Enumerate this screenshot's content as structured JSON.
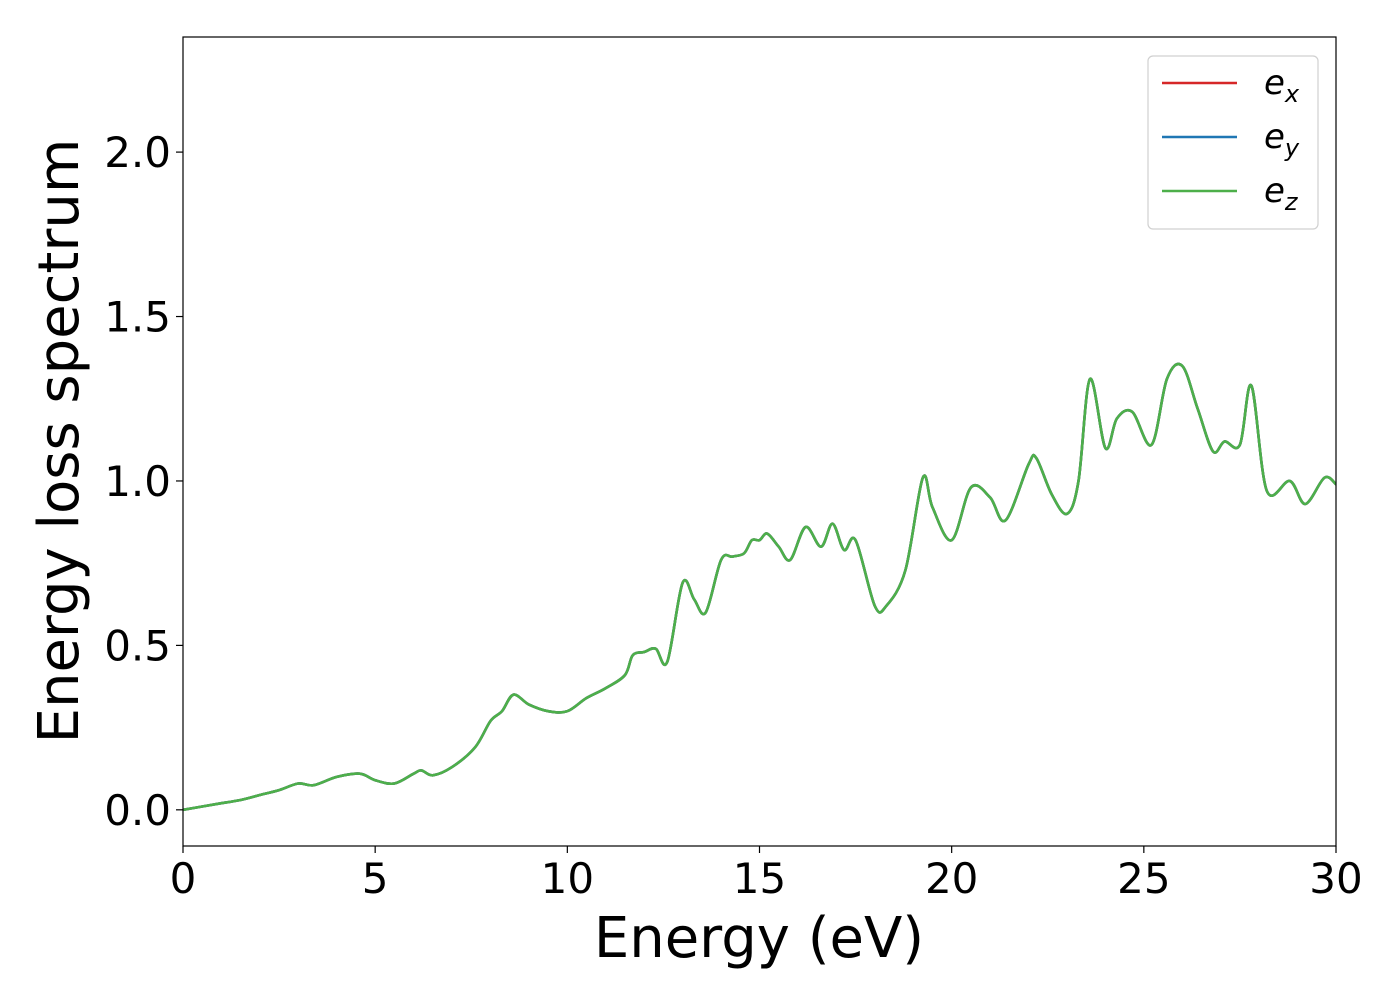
{
  "chart_data": {
    "type": "line",
    "xlabel": "Energy (eV)",
    "ylabel": "Energy loss spectrum",
    "xlim": [
      0,
      30
    ],
    "ylim": [
      -0.11,
      2.35
    ],
    "xticks": [
      0,
      5,
      10,
      15,
      20,
      25,
      30
    ],
    "xtick_labels": [
      "0",
      "5",
      "10",
      "15",
      "20",
      "25",
      "30"
    ],
    "yticks": [
      0.0,
      0.5,
      1.0,
      1.5,
      2.0
    ],
    "ytick_labels": [
      "0.0",
      "0.5",
      "1.0",
      "1.5",
      "2.0"
    ],
    "grid": false,
    "legend_position": "top-right",
    "series": [
      {
        "name": "e",
        "subscript": "x",
        "color": "#d62728",
        "ref": "e_z"
      },
      {
        "name": "e",
        "subscript": "y",
        "color": "#1f77b4",
        "ref": "e_z"
      },
      {
        "name": "e",
        "subscript": "z",
        "color": "#4daf4a",
        "ref": "e_z"
      }
    ],
    "x": [
      0.0,
      0.5,
      1.0,
      1.5,
      2.0,
      2.5,
      3.0,
      3.4,
      4.0,
      4.6,
      5.0,
      5.5,
      6.0,
      6.2,
      6.5,
      7.0,
      7.6,
      8.0,
      8.3,
      8.6,
      9.0,
      9.5,
      10.0,
      10.5,
      11.0,
      11.5,
      11.7,
      12.0,
      12.3,
      12.6,
      13.0,
      13.3,
      13.6,
      14.0,
      14.3,
      14.6,
      14.8,
      15.0,
      15.2,
      15.5,
      15.8,
      16.2,
      16.6,
      16.9,
      17.2,
      17.5,
      18.0,
      18.3,
      18.8,
      19.25,
      19.5,
      20.0,
      20.5,
      21.0,
      21.4,
      22.0,
      22.2,
      22.6,
      23.0,
      23.3,
      23.6,
      24.0,
      24.3,
      24.7,
      25.2,
      25.6,
      26.0,
      26.4,
      26.8,
      27.1,
      27.5,
      27.8,
      28.2,
      28.8,
      29.2,
      29.7,
      30.0
    ],
    "e_z": [
      0.0,
      0.01,
      0.02,
      0.03,
      0.045,
      0.06,
      0.08,
      0.075,
      0.1,
      0.11,
      0.09,
      0.08,
      0.11,
      0.12,
      0.105,
      0.13,
      0.19,
      0.27,
      0.3,
      0.35,
      0.32,
      0.3,
      0.3,
      0.34,
      0.37,
      0.41,
      0.47,
      0.48,
      0.49,
      0.45,
      0.69,
      0.64,
      0.6,
      0.76,
      0.77,
      0.78,
      0.82,
      0.82,
      0.84,
      0.8,
      0.76,
      0.86,
      0.8,
      0.87,
      0.79,
      0.82,
      0.62,
      0.62,
      0.73,
      1.01,
      0.92,
      0.82,
      0.98,
      0.95,
      0.88,
      1.05,
      1.07,
      0.96,
      0.9,
      1.0,
      1.31,
      1.1,
      1.19,
      1.21,
      1.11,
      1.31,
      1.35,
      1.22,
      1.09,
      1.12,
      1.11,
      1.29,
      0.97,
      1.0,
      0.93,
      1.01,
      0.99
    ]
  }
}
